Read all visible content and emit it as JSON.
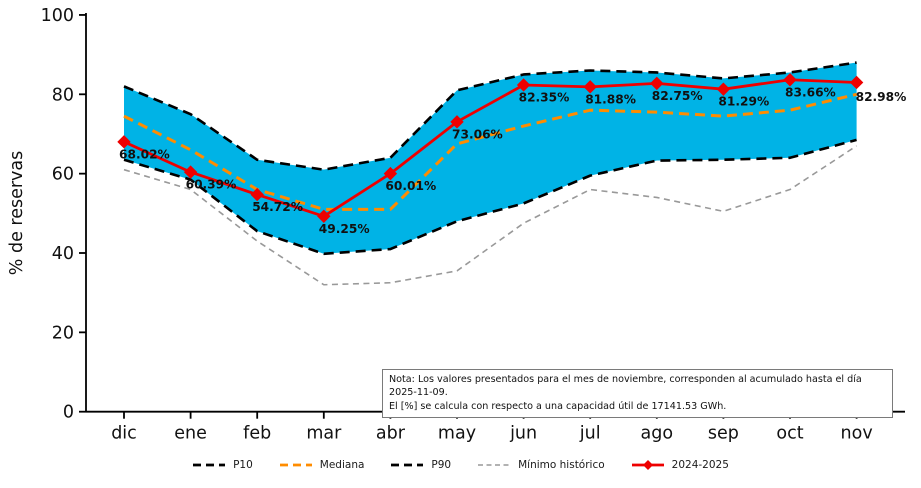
{
  "note": {
    "line1": "Nota: Los valores presentados para el mes de noviembre, corresponden al acumulado hasta el día 2025-11-09.",
    "line2": "El [%] se calcula con respecto a una capacidad útil de 17141.53 GWh."
  },
  "colors": {
    "band_fill": "#00b3e6",
    "black_line": "#000000",
    "median_orange": "#ff8c00",
    "min_gray": "#999999",
    "current_red": "#ee0000",
    "text": "#111111"
  },
  "chart_data": {
    "type": "line",
    "title": "",
    "xlabel": "",
    "ylabel": "% de reservas",
    "ylim": [
      0,
      100
    ],
    "y_ticks": [
      0,
      20,
      40,
      60,
      80,
      100
    ],
    "categories": [
      "dic",
      "ene",
      "feb",
      "mar",
      "abr",
      "may",
      "jun",
      "jul",
      "ago",
      "sep",
      "oct",
      "nov"
    ],
    "grid": false,
    "legend_position": "bottom-center",
    "band": {
      "upper_series": "P90",
      "lower_series": "P10",
      "fill_color": "#00b3e6"
    },
    "series": [
      {
        "name": "P10",
        "style": "dashed",
        "color": "#000000",
        "width": 2.6,
        "values": [
          63.5,
          58.5,
          45.5,
          39.8,
          41,
          48,
          52.5,
          59.5,
          63.3,
          63.5,
          64,
          68.5
        ]
      },
      {
        "name": "Mediana",
        "style": "dashed",
        "color": "#ff8c00",
        "width": 3,
        "values": [
          74.5,
          66,
          56,
          51,
          51,
          67.5,
          72,
          76,
          75.5,
          74.5,
          76,
          80
        ]
      },
      {
        "name": "P90",
        "style": "dashed",
        "color": "#000000",
        "width": 2.6,
        "values": [
          82,
          75,
          63.5,
          61,
          64,
          81,
          85,
          86,
          85.5,
          84,
          85.5,
          88
        ]
      },
      {
        "name": "Mínimo histórico",
        "style": "dashed-small",
        "color": "#999999",
        "width": 1.6,
        "values": [
          61,
          56,
          43,
          32,
          32.5,
          35.5,
          47.5,
          56,
          54,
          50.5,
          56,
          67
        ]
      },
      {
        "name": "2024-2025",
        "style": "solid",
        "color": "#ee0000",
        "width": 2.8,
        "marker": "diamond",
        "values": [
          68.02,
          60.39,
          54.72,
          49.25,
          60.01,
          73.06,
          82.35,
          81.88,
          82.75,
          81.29,
          83.66,
          82.98
        ],
        "labels": [
          "68.02%",
          "60.39%",
          "54.72%",
          "49.25%",
          "60.01%",
          "73.06%",
          "82.35%",
          "81.88%",
          "82.75%",
          "81.29%",
          "83.66%",
          "82.98%"
        ]
      }
    ],
    "legend": [
      "P10",
      "Mediana",
      "P90",
      "Mínimo histórico",
      "2024-2025"
    ]
  }
}
